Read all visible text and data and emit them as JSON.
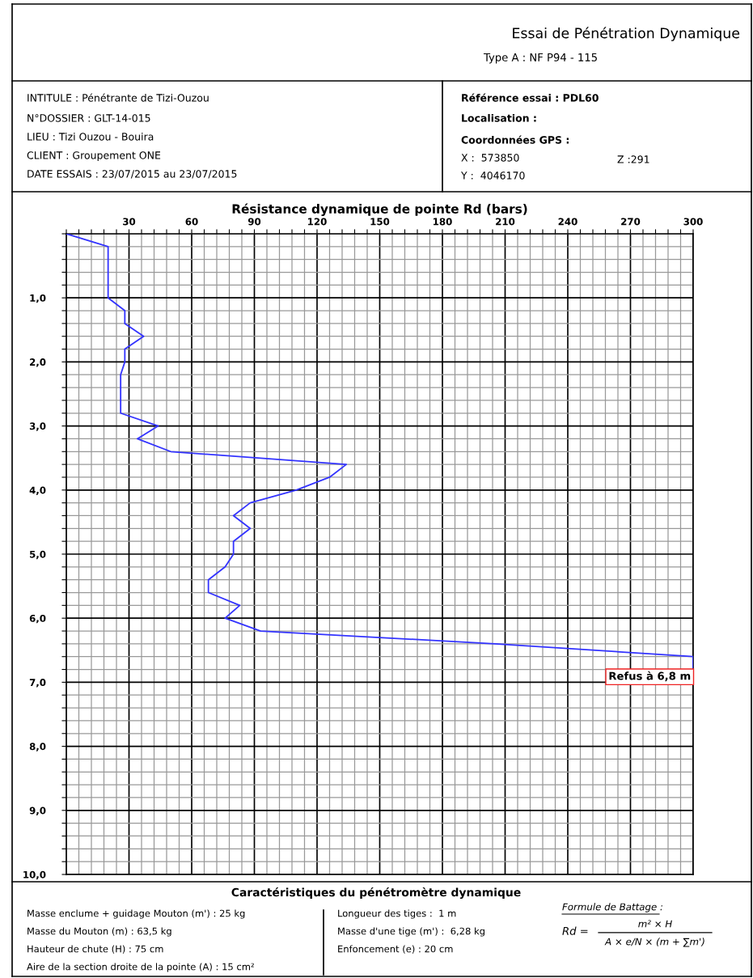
{
  "chart_data": {
    "type": "line",
    "title": "Essai de Pénétration Dynamique",
    "subtitle": "Type A : NF P94 - 115",
    "xlabel": "Résistance dynamique de pointe Rd (bars)",
    "x": [
      0,
      20,
      20,
      28,
      28,
      37,
      28,
      28,
      26,
      26,
      44,
      34,
      50,
      134,
      126,
      110,
      88,
      80,
      88,
      80,
      80,
      76,
      68,
      68,
      83,
      76,
      93,
      205,
      300,
      300
    ],
    "series": [
      {
        "color": "#3333ff",
        "values": [
          0,
          0.2,
          1.0,
          1.2,
          1.4,
          1.6,
          1.8,
          2.0,
          2.2,
          2.8,
          3.0,
          3.2,
          3.4,
          3.6,
          3.8,
          4.0,
          4.2,
          4.4,
          4.6,
          4.8,
          5.0,
          5.2,
          5.4,
          5.6,
          5.8,
          6.0,
          6.2,
          6.4,
          6.6,
          6.8
        ]
      }
    ],
    "xlim": [
      0,
      300
    ],
    "ylim": [
      10,
      0
    ],
    "xticks": [
      {
        "value": 0,
        "label": null
      },
      {
        "value": 6,
        "label": null
      },
      {
        "value": 12,
        "label": null
      },
      {
        "value": 18,
        "label": null
      },
      {
        "value": 24,
        "label": null
      },
      30,
      {
        "value": 36,
        "label": null
      },
      {
        "value": 42,
        "label": null
      },
      {
        "value": 48,
        "label": null
      },
      {
        "value": 54,
        "label": null
      },
      60,
      {
        "value": 66,
        "label": null
      },
      {
        "value": 72,
        "label": null
      },
      {
        "value": 78,
        "label": null
      },
      {
        "value": 84,
        "label": null
      },
      90,
      {
        "value": 96,
        "label": null
      },
      {
        "value": 102,
        "label": null
      },
      {
        "value": 108,
        "label": null
      },
      {
        "value": 114,
        "label": null
      },
      120,
      {
        "value": 126,
        "label": null
      },
      {
        "value": 132,
        "label": null
      },
      {
        "value": 138,
        "label": null
      },
      {
        "value": 144,
        "label": null
      },
      150,
      {
        "value": 156,
        "label": null
      },
      {
        "value": 162,
        "label": null
      },
      {
        "value": 168,
        "label": null
      },
      {
        "value": 174,
        "label": null
      },
      180,
      {
        "value": 186,
        "label": null
      },
      {
        "value": 192,
        "label": null
      },
      {
        "value": 198,
        "label": null
      },
      {
        "value": 204,
        "label": null
      },
      210,
      {
        "value": 216,
        "label": null
      },
      {
        "value": 222,
        "label": null
      },
      {
        "value": 228,
        "label": null
      },
      {
        "value": 234,
        "label": null
      },
      240,
      {
        "value": 246,
        "label": null
      },
      {
        "value": 252,
        "label": null
      },
      {
        "value": 258,
        "label": null
      },
      {
        "value": 264,
        "label": null
      },
      270,
      {
        "value": 276,
        "label": null
      },
      {
        "value": 282,
        "label": null
      },
      {
        "value": 288,
        "label": null
      },
      {
        "value": 294,
        "label": null
      },
      300
    ],
    "yticks": [
      {
        "value": 0,
        "label": null
      },
      {
        "value": 0.2,
        "label": null
      },
      {
        "value": 0.4,
        "label": null
      },
      {
        "value": 0.6,
        "label": null
      },
      {
        "value": 0.8,
        "label": null
      },
      {
        "value": 1,
        "label": "1,0"
      },
      {
        "value": 1.2,
        "label": null
      },
      {
        "value": 1.4,
        "label": null
      },
      {
        "value": 1.6,
        "label": null
      },
      {
        "value": 1.8,
        "label": null
      },
      {
        "value": 2,
        "label": "2,0"
      },
      {
        "value": 2.2,
        "label": null
      },
      {
        "value": 2.4,
        "label": null
      },
      {
        "value": 2.6,
        "label": null
      },
      {
        "value": 2.8,
        "label": null
      },
      {
        "value": 3,
        "label": "3,0"
      },
      {
        "value": 3.2,
        "label": null
      },
      {
        "value": 3.4,
        "label": null
      },
      {
        "value": 3.6,
        "label": null
      },
      {
        "value": 3.8,
        "label": null
      },
      {
        "value": 4,
        "label": "4,0"
      },
      {
        "value": 4.2,
        "label": null
      },
      {
        "value": 4.4,
        "label": null
      },
      {
        "value": 4.6,
        "label": null
      },
      {
        "value": 4.8,
        "label": null
      },
      {
        "value": 5,
        "label": "5,0"
      },
      {
        "value": 5.2,
        "label": null
      },
      {
        "value": 5.4,
        "label": null
      },
      {
        "value": 5.6,
        "label": null
      },
      {
        "value": 5.8,
        "label": null
      },
      {
        "value": 6,
        "label": "6,0"
      },
      {
        "value": 6.2,
        "label": null
      },
      {
        "value": 6.4,
        "label": null
      },
      {
        "value": 6.6,
        "label": null
      },
      {
        "value": 6.8,
        "label": null
      },
      {
        "value": 7,
        "label": "7,0"
      },
      {
        "value": 7.2,
        "label": null
      },
      {
        "value": 7.4,
        "label": null
      },
      {
        "value": 7.6,
        "label": null
      },
      {
        "value": 7.8,
        "label": null
      },
      {
        "value": 8,
        "label": "8,0"
      },
      {
        "value": 8.2,
        "label": null
      },
      {
        "value": 8.4,
        "label": null
      },
      {
        "value": 8.6,
        "label": null
      },
      {
        "value": 8.8,
        "label": null
      },
      {
        "value": 9,
        "label": "9,0"
      },
      {
        "value": 9.2,
        "label": null
      },
      {
        "value": 9.4,
        "label": null
      },
      {
        "value": 9.6,
        "label": null
      },
      {
        "value": 9.8,
        "label": null
      },
      {
        "value": 10,
        "label": "10,0"
      }
    ],
    "grid": true,
    "marker": "none",
    "line_style": "solid",
    "annotations": [
      "INTITULE : Pénétrante de Tizi-Ouzou",
      "N°DOSSIER : GLT-14-015",
      "LIEU : Tizi Ouzou - Bouira",
      "CLIENT : Groupement ONE",
      "DATE ESSAIS : 23/07/2015 au 23/07/2015",
      "Référence essai : PDL60",
      "Localisation :",
      "Coordonnées GPS :",
      "X :  573850",
      "Z :291",
      "Y :  4046170",
      "Caractéristiques du pénétromètre dynamique",
      "Masse enclume + guidage Mouton (m') : 25 kg",
      "Masse du Mouton (m) : 63,5 kg",
      "Hauteur de chute (H) : 75 cm",
      "Aire de la section droite de la pointe (A) : 15 cm²",
      "Longueur des tiges :  1 m",
      "Masse d'une tige (m') :  6,28 kg",
      "Enfoncement (e) : 20 cm",
      "Formule de Battage :",
      "Rd =",
      "m² × H",
      "A × e/N × (m + ∑m')",
      {
        "text": "Refus à 6,8 m",
        "x": 300,
        "y": 6.8
      }
    ]
  }
}
